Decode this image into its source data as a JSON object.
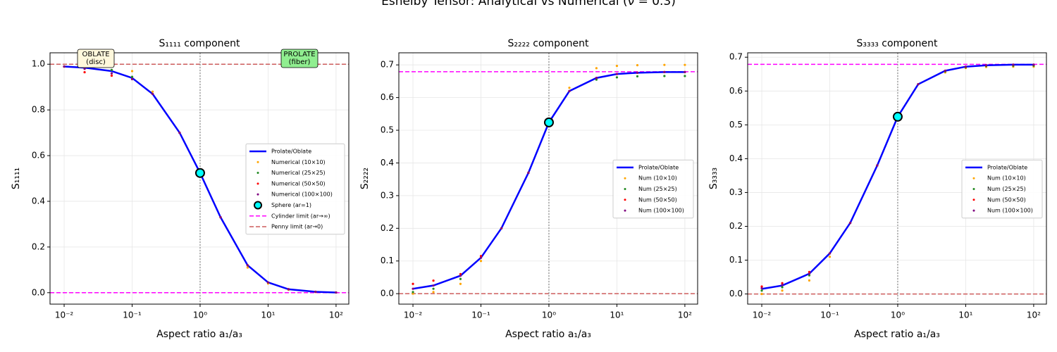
{
  "title": "Eshelby Tensor: Analytical vs Numerical (ν = 0.3)",
  "chart_data": [
    {
      "type": "line",
      "title": "S₁₁₁₁ component",
      "xlabel": "Aspect ratio a₁/a₃",
      "ylabel": "S₁₁₁₁",
      "xscale": "log",
      "xlim": [
        0.0062,
        154
      ],
      "ylim": [
        -0.05,
        1.05
      ],
      "grid": true,
      "legend": "center right",
      "xticks": [
        {
          "value": 0.01,
          "label": "10⁻²"
        },
        {
          "value": 0.1,
          "label": "10⁻¹"
        },
        {
          "value": 1,
          "label": "10⁰"
        },
        {
          "value": 10,
          "label": "10¹"
        },
        {
          "value": 100,
          "label": "10²"
        }
      ],
      "yticks": [
        {
          "value": 0,
          "label": "0.0"
        },
        0.2,
        0.4,
        0.6,
        0.8,
        {
          "value": 1,
          "label": "1.0"
        }
      ],
      "x": [
        0.01,
        0.02,
        0.05,
        0.1,
        0.2,
        0.5,
        1,
        2,
        5,
        10,
        20,
        50,
        100
      ],
      "series": [
        {
          "name": "Prolate/Oblate",
          "style": "line",
          "color": "#0000ff",
          "values": [
            0.99,
            0.985,
            0.97,
            0.94,
            0.87,
            0.7,
            0.524,
            0.33,
            0.12,
            0.045,
            0.015,
            0.004,
            0.001
          ]
        },
        {
          "name": "Numerical (10×10)",
          "style": "dots",
          "color": "#ffa500",
          "values": [
            0.99,
            0.995,
            1.0,
            0.97,
            0.88,
            0.7,
            0.524,
            0.33,
            0.11,
            0.04,
            0.013,
            0.003,
            0.001
          ]
        },
        {
          "name": "Numerical (25×25)",
          "style": "dots",
          "color": "#228b22",
          "values": [
            0.99,
            0.985,
            0.975,
            0.945,
            0.87,
            0.7,
            0.524,
            0.33,
            0.12,
            0.045,
            0.015,
            0.004,
            0.001
          ]
        },
        {
          "name": "Numerical (50×50)",
          "style": "dots",
          "color": "#ff0000",
          "values": [
            0.99,
            0.965,
            0.95,
            0.935,
            0.87,
            0.7,
            0.524,
            0.33,
            0.12,
            0.045,
            0.015,
            0.004,
            0.001
          ]
        },
        {
          "name": "Numerical (100×100)",
          "style": "dots",
          "color": "#800080",
          "values": [
            0.99,
            0.98,
            0.96,
            0.935,
            0.87,
            0.7,
            0.524,
            0.33,
            0.12,
            0.045,
            0.015,
            0.004,
            0.001
          ]
        }
      ],
      "markers": [
        {
          "name": "Sphere (ar=1)",
          "x": 1,
          "y": 0.524,
          "color": "#00ffff"
        }
      ],
      "hlines": [
        {
          "name": "Cylinder limit (ar→∞)",
          "y": 0,
          "color": "#ff00ff"
        },
        {
          "name": "Penny limit (ar→0)",
          "y": 1,
          "color": "#cd5c5c"
        }
      ],
      "vline": 1,
      "annotations": [
        {
          "lines": [
            "OBLATE",
            "(disc)"
          ],
          "color": "#fff8dc"
        },
        {
          "lines": [
            "PROLATE",
            "(fiber)"
          ],
          "color": "#90ee90"
        }
      ]
    },
    {
      "type": "line",
      "title": "S₂₂₂₂ component",
      "xlabel": "Aspect ratio a₁/a₃",
      "ylabel": "S₂₂₂₂",
      "xscale": "log",
      "xlim": [
        0.0062,
        154
      ],
      "ylim": [
        -0.032,
        0.737
      ],
      "grid": true,
      "legend": "center right",
      "xticks": [
        {
          "value": 0.01,
          "label": "10⁻²"
        },
        {
          "value": 0.1,
          "label": "10⁻¹"
        },
        {
          "value": 1,
          "label": "10⁰"
        },
        {
          "value": 10,
          "label": "10¹"
        },
        {
          "value": 100,
          "label": "10²"
        }
      ],
      "yticks": [
        {
          "value": 0,
          "label": "0.0"
        },
        0.1,
        0.2,
        0.3,
        0.4,
        0.5,
        0.6,
        0.7
      ],
      "x": [
        0.01,
        0.02,
        0.05,
        0.1,
        0.2,
        0.5,
        1,
        2,
        5,
        10,
        20,
        50,
        100
      ],
      "series": [
        {
          "name": "Prolate/Oblate",
          "style": "line",
          "color": "#0000ff",
          "values": [
            0.015,
            0.025,
            0.055,
            0.11,
            0.2,
            0.37,
            0.524,
            0.62,
            0.66,
            0.672,
            0.676,
            0.678,
            0.678
          ]
        },
        {
          "name": "Num (10×10)",
          "style": "dots",
          "color": "#ffa500",
          "values": [
            0.0,
            0.005,
            0.03,
            0.1,
            0.2,
            0.37,
            0.524,
            0.63,
            0.69,
            0.697,
            0.699,
            0.7,
            0.7
          ]
        },
        {
          "name": "Num (25×25)",
          "style": "dots",
          "color": "#228b22",
          "values": [
            0.005,
            0.015,
            0.045,
            0.11,
            0.2,
            0.37,
            0.524,
            0.62,
            0.655,
            0.662,
            0.665,
            0.666,
            0.666
          ]
        },
        {
          "name": "Num (50×50)",
          "style": "dots",
          "color": "#ff0000",
          "values": [
            0.03,
            0.04,
            0.06,
            0.115,
            0.2,
            0.37,
            0.524,
            0.62,
            0.66,
            0.672,
            0.676,
            0.678,
            0.678
          ]
        },
        {
          "name": "Num (100×100)",
          "style": "dots",
          "color": "#800080",
          "values": [
            0.015,
            0.025,
            0.055,
            0.11,
            0.2,
            0.37,
            0.524,
            0.62,
            0.66,
            0.672,
            0.676,
            0.678,
            0.678
          ]
        }
      ],
      "markers": [
        {
          "x": 1,
          "y": 0.524,
          "color": "#00ffff"
        }
      ],
      "hlines": [
        {
          "y": 0.679,
          "color": "#ff00ff"
        },
        {
          "y": 0,
          "color": "#cd5c5c"
        }
      ],
      "vline": 1
    },
    {
      "type": "line",
      "title": "S₃₃₃₃ component",
      "xlabel": "Aspect ratio a₁/a₃",
      "ylabel": "S₃₃₃₃",
      "xscale": "log",
      "xlim": [
        0.0062,
        154
      ],
      "ylim": [
        -0.03,
        0.713
      ],
      "grid": true,
      "legend": "center right",
      "xticks": [
        {
          "value": 0.01,
          "label": "10⁻²"
        },
        {
          "value": 0.1,
          "label": "10⁻¹"
        },
        {
          "value": 1,
          "label": "10⁰"
        },
        {
          "value": 10,
          "label": "10¹"
        },
        {
          "value": 100,
          "label": "10²"
        }
      ],
      "yticks": [
        {
          "value": 0,
          "label": "0.0"
        },
        0.1,
        0.2,
        0.3,
        0.4,
        0.5,
        0.6,
        0.7
      ],
      "x": [
        0.01,
        0.02,
        0.05,
        0.1,
        0.2,
        0.5,
        1,
        2,
        5,
        10,
        20,
        50,
        100
      ],
      "series": [
        {
          "name": "Prolate/Oblate",
          "style": "line",
          "color": "#0000ff",
          "values": [
            0.015,
            0.025,
            0.06,
            0.12,
            0.21,
            0.38,
            0.524,
            0.62,
            0.66,
            0.672,
            0.676,
            0.678,
            0.678
          ]
        },
        {
          "name": "Num (10×10)",
          "style": "dots",
          "color": "#ffa500",
          "values": [
            0.0,
            0.01,
            0.04,
            0.11,
            0.21,
            0.38,
            0.524,
            0.62,
            0.655,
            0.668,
            0.671,
            0.672,
            0.672
          ]
        },
        {
          "name": "Num (25×25)",
          "style": "dots",
          "color": "#228b22",
          "values": [
            0.01,
            0.02,
            0.055,
            0.12,
            0.21,
            0.38,
            0.524,
            0.62,
            0.658,
            0.67,
            0.674,
            0.675,
            0.675
          ]
        },
        {
          "name": "Num (50×50)",
          "style": "dots",
          "color": "#ff0000",
          "values": [
            0.022,
            0.032,
            0.065,
            0.12,
            0.21,
            0.38,
            0.524,
            0.62,
            0.66,
            0.672,
            0.676,
            0.678,
            0.678
          ]
        },
        {
          "name": "Num (100×100)",
          "style": "dots",
          "color": "#800080",
          "values": [
            0.017,
            0.027,
            0.06,
            0.12,
            0.21,
            0.38,
            0.524,
            0.62,
            0.66,
            0.672,
            0.676,
            0.678,
            0.678
          ]
        }
      ],
      "markers": [
        {
          "x": 1,
          "y": 0.524,
          "color": "#00ffff"
        }
      ],
      "hlines": [
        {
          "y": 0.679,
          "color": "#ff00ff"
        },
        {
          "y": 0,
          "color": "#cd5c5c"
        }
      ],
      "vline": 1
    }
  ]
}
